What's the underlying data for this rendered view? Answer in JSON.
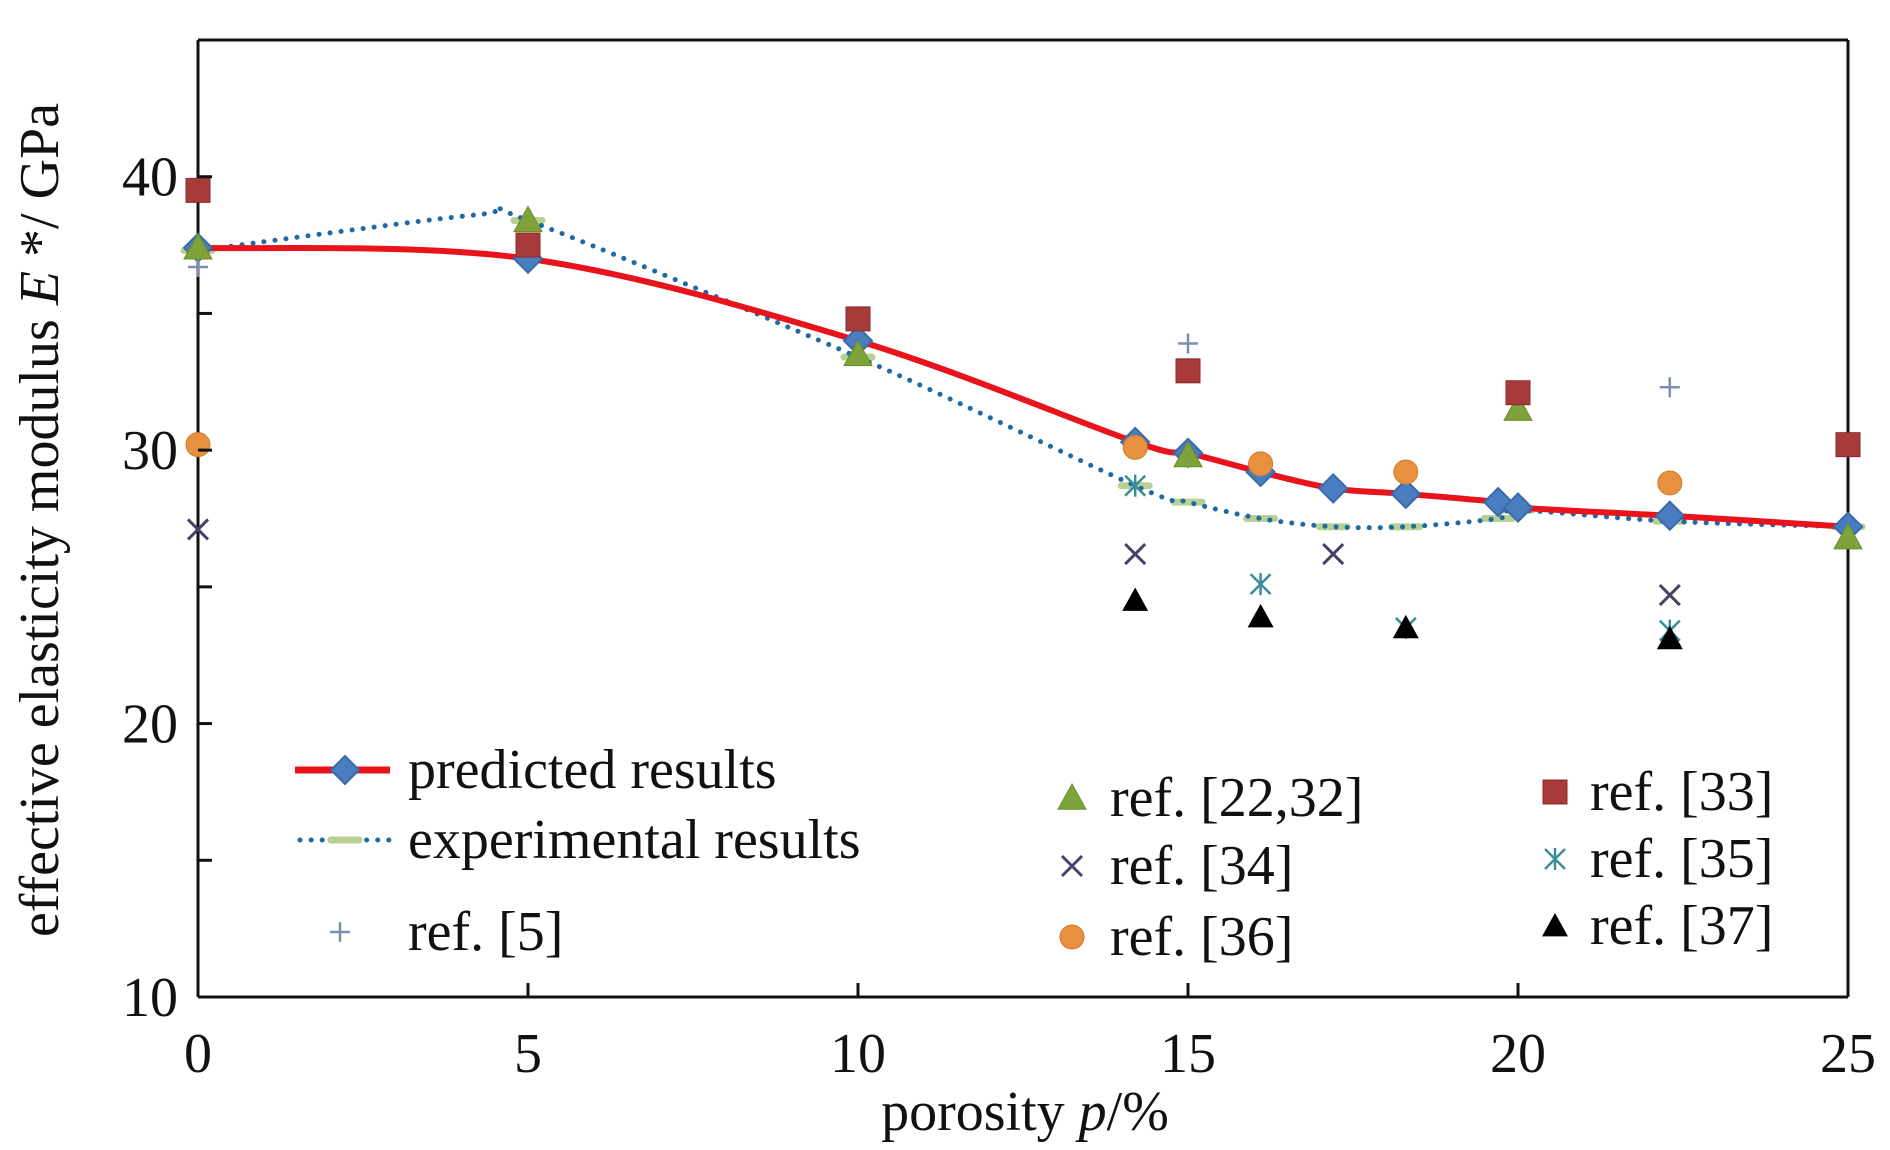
{
  "colors": {
    "predicted": "#e8131b",
    "predicted_marker": "#4a7dbf",
    "experimental_dot": "#1f6aa5",
    "experimental_dash": "#b7d094",
    "ref5": "#7a8fb0",
    "ref22_32": "#7fa23a",
    "ref33": "#a83a3a",
    "ref34": "#4a3f66",
    "ref35": "#3a8c9a",
    "ref36": "#e69040",
    "ref37": "#000000",
    "axis": "#111111"
  },
  "chart_data": {
    "type": "line",
    "xlabel": "porosity p/%",
    "ylabel": "effective elasticity modulus E*/GPa",
    "xlim": [
      0,
      25
    ],
    "ylim": [
      10,
      45
    ],
    "x_ticks": [
      0,
      5,
      10,
      15,
      20,
      25
    ],
    "y_ticks": [
      10,
      15,
      20,
      25,
      30,
      35,
      40,
      45
    ],
    "y_tick_labels": [
      "10",
      "20",
      "30",
      "40"
    ],
    "grid": false,
    "legend": [
      {
        "key": "predicted",
        "label": "predicted results"
      },
      {
        "key": "experimental",
        "label": "experimental results"
      },
      {
        "key": "ref5",
        "label": "ref. [5]"
      },
      {
        "key": "ref22_32",
        "label": "ref. [22,32]"
      },
      {
        "key": "ref34",
        "label": "ref. [34]"
      },
      {
        "key": "ref36",
        "label": "ref. [36]"
      },
      {
        "key": "ref33",
        "label": "ref. [33]"
      },
      {
        "key": "ref35",
        "label": "ref. [35]"
      },
      {
        "key": "ref37",
        "label": "ref. [37]"
      }
    ],
    "series": [
      {
        "key": "predicted",
        "name": "predicted results",
        "style": "line-diamond",
        "x": [
          0,
          5,
          10,
          14.2,
          15,
          16.1,
          17.2,
          18.3,
          19.7,
          20,
          22.3,
          25
        ],
        "y": [
          37.4,
          37.0,
          34.0,
          30.3,
          29.9,
          29.2,
          28.6,
          28.4,
          28.1,
          27.9,
          27.6,
          27.2
        ]
      },
      {
        "key": "experimental",
        "name": "experimental results",
        "style": "dotted-dash",
        "x": [
          0,
          4.2,
          5,
          10,
          14.2,
          15,
          16.1,
          17.2,
          18.3,
          19.7,
          20,
          22.3,
          25
        ],
        "y": [
          37.3,
          38.6,
          38.4,
          33.4,
          28.7,
          28.1,
          27.5,
          27.2,
          27.2,
          27.5,
          27.8,
          27.4,
          27.2
        ]
      },
      {
        "key": "ref5",
        "name": "ref. [5]",
        "style": "plus",
        "x": [
          0,
          15,
          22.3
        ],
        "y": [
          36.7,
          33.9,
          32.3
        ]
      },
      {
        "key": "ref22_32",
        "name": "ref. [22,32]",
        "style": "triangle",
        "x": [
          0,
          5,
          10,
          15,
          20,
          25
        ],
        "y": [
          37.4,
          38.4,
          33.5,
          29.8,
          31.5,
          26.8
        ]
      },
      {
        "key": "ref33",
        "name": "ref. [33]",
        "style": "square",
        "x": [
          0,
          5,
          10,
          15,
          20,
          25
        ],
        "y": [
          39.5,
          37.5,
          34.8,
          32.9,
          32.1,
          30.2
        ]
      },
      {
        "key": "ref34",
        "name": "ref. [34]",
        "style": "x",
        "x": [
          0,
          14.2,
          17.2,
          22.3
        ],
        "y": [
          27.1,
          26.2,
          26.2,
          24.7
        ]
      },
      {
        "key": "ref35",
        "name": "ref. [35]",
        "style": "asterisk",
        "x": [
          14.2,
          16.1,
          18.3,
          22.3
        ],
        "y": [
          28.7,
          25.1,
          23.5,
          23.4
        ]
      },
      {
        "key": "ref36",
        "name": "ref. [36]",
        "style": "circle",
        "x": [
          0,
          14.2,
          16.1,
          18.3,
          22.3
        ],
        "y": [
          30.2,
          30.1,
          29.5,
          29.2,
          28.8
        ]
      },
      {
        "key": "ref37",
        "name": "ref. [37]",
        "style": "filled-triangle",
        "x": [
          14.2,
          16.1,
          18.3,
          22.3
        ],
        "y": [
          24.5,
          23.9,
          23.5,
          23.1
        ]
      }
    ]
  }
}
